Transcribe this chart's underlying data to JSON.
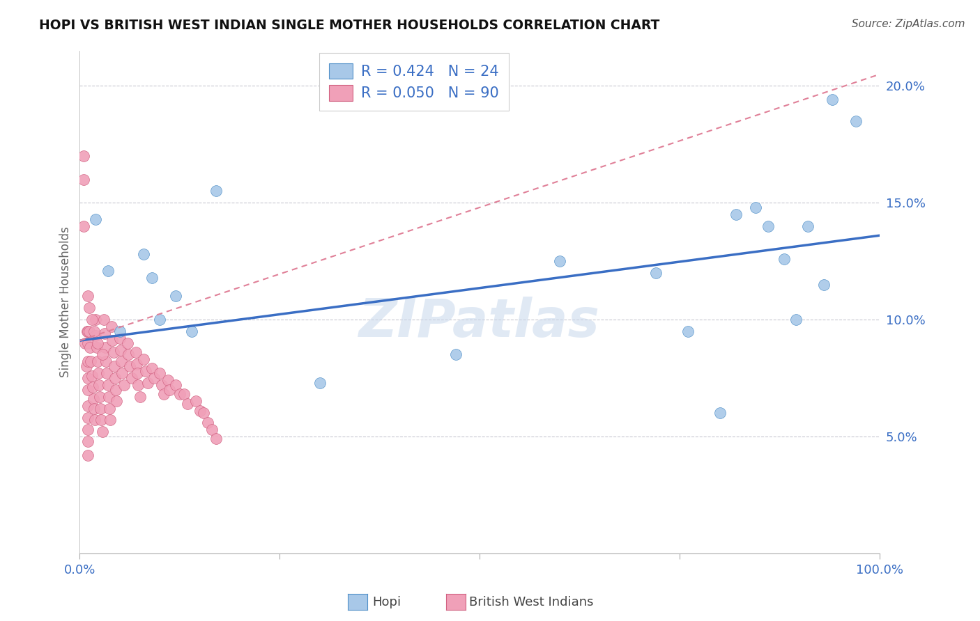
{
  "title": "HOPI VS BRITISH WEST INDIAN SINGLE MOTHER HOUSEHOLDS CORRELATION CHART",
  "source": "Source: ZipAtlas.com",
  "ylabel": "Single Mother Households",
  "legend_hopi_r": "R = 0.424",
  "legend_hopi_n": "N = 24",
  "legend_bwi_r": "R = 0.050",
  "legend_bwi_n": "N = 90",
  "hopi_color": "#A8C8E8",
  "bwi_color": "#F0A0B8",
  "hopi_edge_color": "#5090C8",
  "bwi_edge_color": "#D06080",
  "hopi_line_color": "#3A6EC4",
  "bwi_line_color": "#E08098",
  "watermark": "ZIPatlas",
  "hopi_x": [
    0.02,
    0.035,
    0.05,
    0.08,
    0.09,
    0.1,
    0.12,
    0.14,
    0.17,
    0.3,
    0.47,
    0.6,
    0.72,
    0.76,
    0.8,
    0.82,
    0.845,
    0.86,
    0.88,
    0.895,
    0.91,
    0.93,
    0.94,
    0.97
  ],
  "hopi_y": [
    0.143,
    0.121,
    0.095,
    0.128,
    0.118,
    0.1,
    0.11,
    0.095,
    0.155,
    0.073,
    0.085,
    0.125,
    0.12,
    0.095,
    0.06,
    0.145,
    0.148,
    0.14,
    0.126,
    0.1,
    0.14,
    0.115,
    0.194,
    0.185
  ],
  "bwi_x": [
    0.005,
    0.005,
    0.005,
    0.007,
    0.008,
    0.009,
    0.01,
    0.01,
    0.01,
    0.01,
    0.01,
    0.01,
    0.01,
    0.01,
    0.01,
    0.01,
    0.012,
    0.013,
    0.014,
    0.015,
    0.016,
    0.017,
    0.018,
    0.019,
    0.02,
    0.02,
    0.021,
    0.022,
    0.023,
    0.024,
    0.025,
    0.026,
    0.027,
    0.028,
    0.03,
    0.031,
    0.032,
    0.033,
    0.034,
    0.035,
    0.036,
    0.037,
    0.038,
    0.04,
    0.041,
    0.042,
    0.043,
    0.044,
    0.045,
    0.046,
    0.05,
    0.051,
    0.052,
    0.053,
    0.055,
    0.06,
    0.061,
    0.062,
    0.065,
    0.07,
    0.071,
    0.072,
    0.073,
    0.075,
    0.08,
    0.082,
    0.085,
    0.09,
    0.093,
    0.1,
    0.102,
    0.105,
    0.11,
    0.112,
    0.12,
    0.125,
    0.13,
    0.135,
    0.145,
    0.15,
    0.155,
    0.16,
    0.165,
    0.17,
    0.01,
    0.012,
    0.015,
    0.018,
    0.022,
    0.028
  ],
  "bwi_y": [
    0.17,
    0.16,
    0.14,
    0.09,
    0.08,
    0.095,
    0.095,
    0.09,
    0.082,
    0.075,
    0.07,
    0.063,
    0.058,
    0.053,
    0.048,
    0.042,
    0.095,
    0.088,
    0.082,
    0.076,
    0.071,
    0.066,
    0.062,
    0.057,
    0.1,
    0.093,
    0.088,
    0.082,
    0.077,
    0.072,
    0.067,
    0.062,
    0.057,
    0.052,
    0.1,
    0.094,
    0.088,
    0.082,
    0.077,
    0.072,
    0.067,
    0.062,
    0.057,
    0.097,
    0.091,
    0.086,
    0.08,
    0.075,
    0.07,
    0.065,
    0.092,
    0.087,
    0.082,
    0.077,
    0.072,
    0.09,
    0.085,
    0.08,
    0.075,
    0.086,
    0.081,
    0.077,
    0.072,
    0.067,
    0.083,
    0.078,
    0.073,
    0.079,
    0.075,
    0.077,
    0.072,
    0.068,
    0.074,
    0.07,
    0.072,
    0.068,
    0.068,
    0.064,
    0.065,
    0.061,
    0.06,
    0.056,
    0.053,
    0.049,
    0.11,
    0.105,
    0.1,
    0.095,
    0.09,
    0.085
  ],
  "ylim": [
    0.0,
    0.215
  ],
  "xlim": [
    0.0,
    1.0
  ],
  "hopi_line_x0": 0.0,
  "hopi_line_y0": 0.091,
  "hopi_line_x1": 1.0,
  "hopi_line_y1": 0.136,
  "bwi_line_x0": 0.0,
  "bwi_line_y0": 0.091,
  "bwi_line_x1": 1.0,
  "bwi_line_y1": 0.205
}
